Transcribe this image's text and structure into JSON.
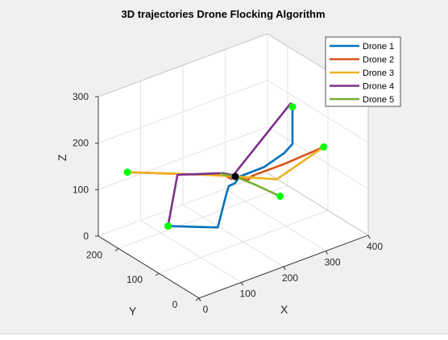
{
  "chart_data": {
    "type": "line3d",
    "title": "3D trajectories Drone Flocking Algorithm",
    "xlabel": "X",
    "ylabel": "Y",
    "zlabel": "Z",
    "xlim": [
      0,
      400
    ],
    "ylim": [
      0,
      250
    ],
    "zlim": [
      0,
      300
    ],
    "xticks": [
      0,
      100,
      200,
      300,
      400
    ],
    "yticks": [
      0,
      100,
      200
    ],
    "zticks": [
      0,
      100,
      200,
      300
    ],
    "grid": true,
    "legend": "top-right",
    "start_marker_color": "#00ff00",
    "center_marker_color": "#000000",
    "center": [
      200,
      120,
      130
    ],
    "series": [
      {
        "name": "Drone 1",
        "color": "#0072bd",
        "start": [
          240,
          20,
          320
        ],
        "points": [
          [
            240,
            20,
            320
          ],
          [
            240,
            20,
            240
          ],
          [
            240,
            40,
            210
          ],
          [
            220,
            70,
            170
          ],
          [
            200,
            110,
            135
          ],
          [
            195,
            115,
            120
          ],
          [
            185,
            120,
            115
          ],
          [
            170,
            110,
            110
          ],
          [
            130,
            90,
            60
          ],
          [
            60,
            140,
            60
          ]
        ]
      },
      {
        "name": "Drone 2",
        "color": "#d95319",
        "start": [
          390,
          100,
          140
        ],
        "points": [
          [
            390,
            100,
            140
          ],
          [
            300,
            100,
            135
          ],
          [
            220,
            100,
            135
          ],
          [
            215,
            105,
            125
          ],
          [
            205,
            115,
            130
          ],
          [
            200,
            120,
            130
          ],
          [
            190,
            120,
            128
          ],
          [
            185,
            130,
            132
          ],
          [
            40,
            220,
            140
          ]
        ]
      },
      {
        "name": "Drone 3",
        "color": "#edb120",
        "start": [
          40,
          220,
          140
        ],
        "points": [
          [
            40,
            220,
            140
          ],
          [
            150,
            150,
            135
          ],
          [
            200,
            120,
            130
          ],
          [
            260,
            80,
            125
          ],
          [
            390,
            100,
            140
          ]
        ]
      },
      {
        "name": "Drone 4",
        "color": "#7e2f8e",
        "start": [
          60,
          140,
          60
        ],
        "points": [
          [
            60,
            140,
            60
          ],
          [
            130,
            190,
            120
          ],
          [
            190,
            140,
            130
          ],
          [
            200,
            125,
            130
          ],
          [
            245,
            30,
            320
          ]
        ]
      },
      {
        "name": "Drone 5",
        "color": "#77ac30",
        "start": [
          230,
          40,
          120
        ],
        "points": [
          [
            230,
            40,
            120
          ],
          [
            210,
            80,
            130
          ],
          [
            200,
            120,
            130
          ],
          [
            185,
            140,
            130
          ]
        ]
      }
    ]
  }
}
